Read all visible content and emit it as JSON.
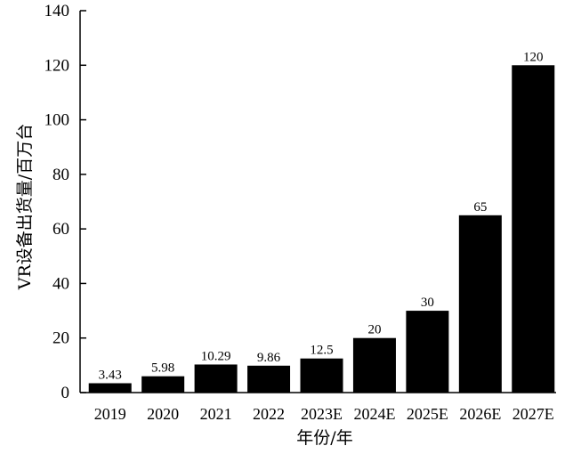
{
  "chart_data": {
    "type": "bar",
    "title": "",
    "xlabel": "年份/年",
    "ylabel": "VR设备出货量/百万台",
    "categories": [
      "2019",
      "2020",
      "2021",
      "2022",
      "2023E",
      "2024E",
      "2025E",
      "2026E",
      "2027E"
    ],
    "values": [
      3.43,
      5.98,
      10.29,
      9.86,
      12.5,
      20,
      30,
      65,
      120
    ],
    "value_labels": [
      "3.43",
      "5.98",
      "10.29",
      "9.86",
      "12.5",
      "20",
      "30",
      "65",
      "120"
    ],
    "ylim": [
      0,
      140
    ],
    "yticks": [
      "0",
      "20",
      "40",
      "60",
      "80",
      "100",
      "120",
      "140"
    ],
    "grid": false,
    "bar_color": "#000000"
  }
}
